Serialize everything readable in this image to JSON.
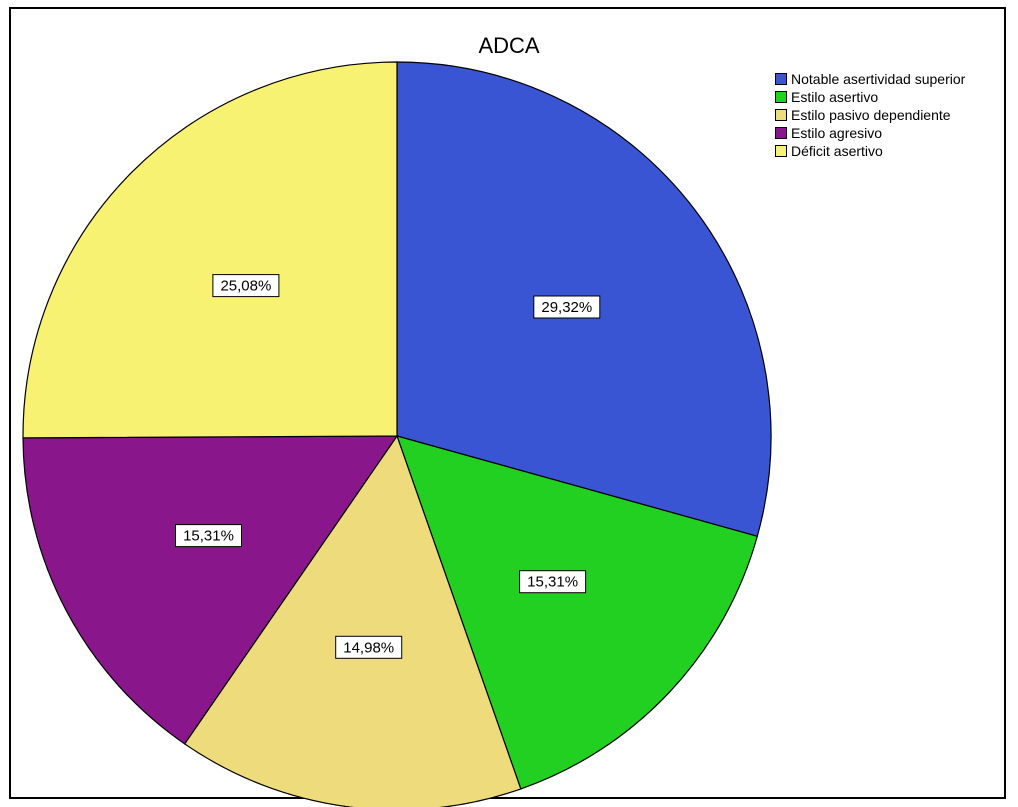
{
  "chart_data": {
    "type": "pie",
    "title": "ADCA",
    "legend_position": "top-right",
    "categories": [
      "Notable asertividad superior",
      "Estilo asertivo",
      "Estilo pasivo dependiente",
      "Estilo agresivo",
      "Déficit asertivo"
    ],
    "values": [
      29.32,
      15.31,
      14.98,
      15.31,
      25.08
    ],
    "labels": [
      "29,32%",
      "15,31%",
      "14,98%",
      "15,31%",
      "25,08%"
    ],
    "colors": [
      "#3a55d4",
      "#22d022",
      "#eedc7c",
      "#8a168c",
      "#f8f272"
    ]
  }
}
